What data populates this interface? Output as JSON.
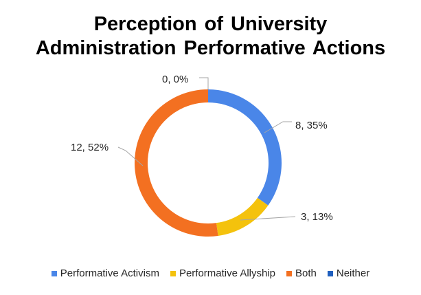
{
  "chart_data": {
    "type": "pie",
    "subtype": "doughnut",
    "title_line1": "Perception of University",
    "title_line2": "Administration Performative Actions",
    "slices": [
      {
        "label": "Performative Activism",
        "value": 8,
        "percent": "35%",
        "color": "#4a86e8"
      },
      {
        "label": "Performative Allyship",
        "value": 3,
        "percent": "13%",
        "color": "#f4c20d"
      },
      {
        "label": "Both",
        "value": 12,
        "percent": "52%",
        "color": "#f37021"
      },
      {
        "label": "Neither",
        "value": 0,
        "percent": "0%",
        "color": "#1f5fbf"
      }
    ],
    "data_labels": [
      "8, 35%",
      "3, 13%",
      "12, 52%",
      "0, 0%"
    ],
    "legend_position": "bottom",
    "grid": false
  }
}
